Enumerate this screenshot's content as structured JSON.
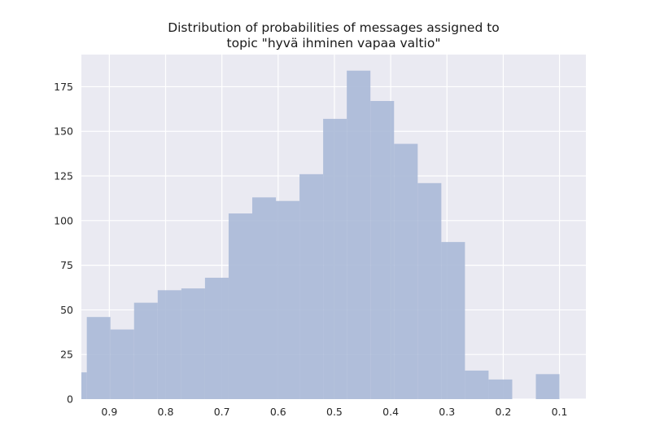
{
  "chart_data": {
    "type": "bar",
    "title_lines": [
      "Distribution of probabilities of messages assigned to",
      "topic \"hyvä ihminen vapaa valtio\""
    ],
    "xlabel": "",
    "ylabel": "",
    "x_axis_inverted": true,
    "xlim": [
      0.95,
      0.05
    ],
    "ylim": [
      0,
      193
    ],
    "grid": true,
    "x_ticks": [
      0.9,
      0.8,
      0.7,
      0.6,
      0.5,
      0.4,
      0.3,
      0.2,
      0.1
    ],
    "x_tick_labels": [
      "0.9",
      "0.8",
      "0.7",
      "0.6",
      "0.5",
      "0.4",
      "0.3",
      "0.2",
      "0.1"
    ],
    "y_ticks": [
      0,
      25,
      50,
      75,
      100,
      125,
      150,
      175
    ],
    "y_tick_labels": [
      "0",
      "25",
      "50",
      "75",
      "100",
      "125",
      "150",
      "175"
    ],
    "bin_width": 0.042,
    "bins": [
      {
        "x_start": 0.96,
        "x_end": 0.94,
        "value": 15
      },
      {
        "x_start": 0.94,
        "x_end": 0.898,
        "value": 46
      },
      {
        "x_start": 0.898,
        "x_end": 0.856,
        "value": 39
      },
      {
        "x_start": 0.856,
        "x_end": 0.814,
        "value": 54
      },
      {
        "x_start": 0.814,
        "x_end": 0.772,
        "value": 61
      },
      {
        "x_start": 0.772,
        "x_end": 0.73,
        "value": 62
      },
      {
        "x_start": 0.73,
        "x_end": 0.688,
        "value": 68
      },
      {
        "x_start": 0.688,
        "x_end": 0.646,
        "value": 104
      },
      {
        "x_start": 0.646,
        "x_end": 0.604,
        "value": 113
      },
      {
        "x_start": 0.604,
        "x_end": 0.562,
        "value": 111
      },
      {
        "x_start": 0.562,
        "x_end": 0.52,
        "value": 126
      },
      {
        "x_start": 0.52,
        "x_end": 0.478,
        "value": 157
      },
      {
        "x_start": 0.478,
        "x_end": 0.436,
        "value": 184
      },
      {
        "x_start": 0.436,
        "x_end": 0.394,
        "value": 167
      },
      {
        "x_start": 0.394,
        "x_end": 0.352,
        "value": 143
      },
      {
        "x_start": 0.352,
        "x_end": 0.31,
        "value": 121
      },
      {
        "x_start": 0.31,
        "x_end": 0.268,
        "value": 88
      },
      {
        "x_start": 0.268,
        "x_end": 0.226,
        "value": 16
      },
      {
        "x_start": 0.226,
        "x_end": 0.184,
        "value": 11
      },
      {
        "x_start": 0.184,
        "x_end": 0.142,
        "value": 0
      },
      {
        "x_start": 0.142,
        "x_end": 0.1,
        "value": 14
      }
    ],
    "colors": {
      "bar": "#a7b7d6",
      "plot_background": "#eaeaf2",
      "grid": "#ffffff"
    }
  }
}
